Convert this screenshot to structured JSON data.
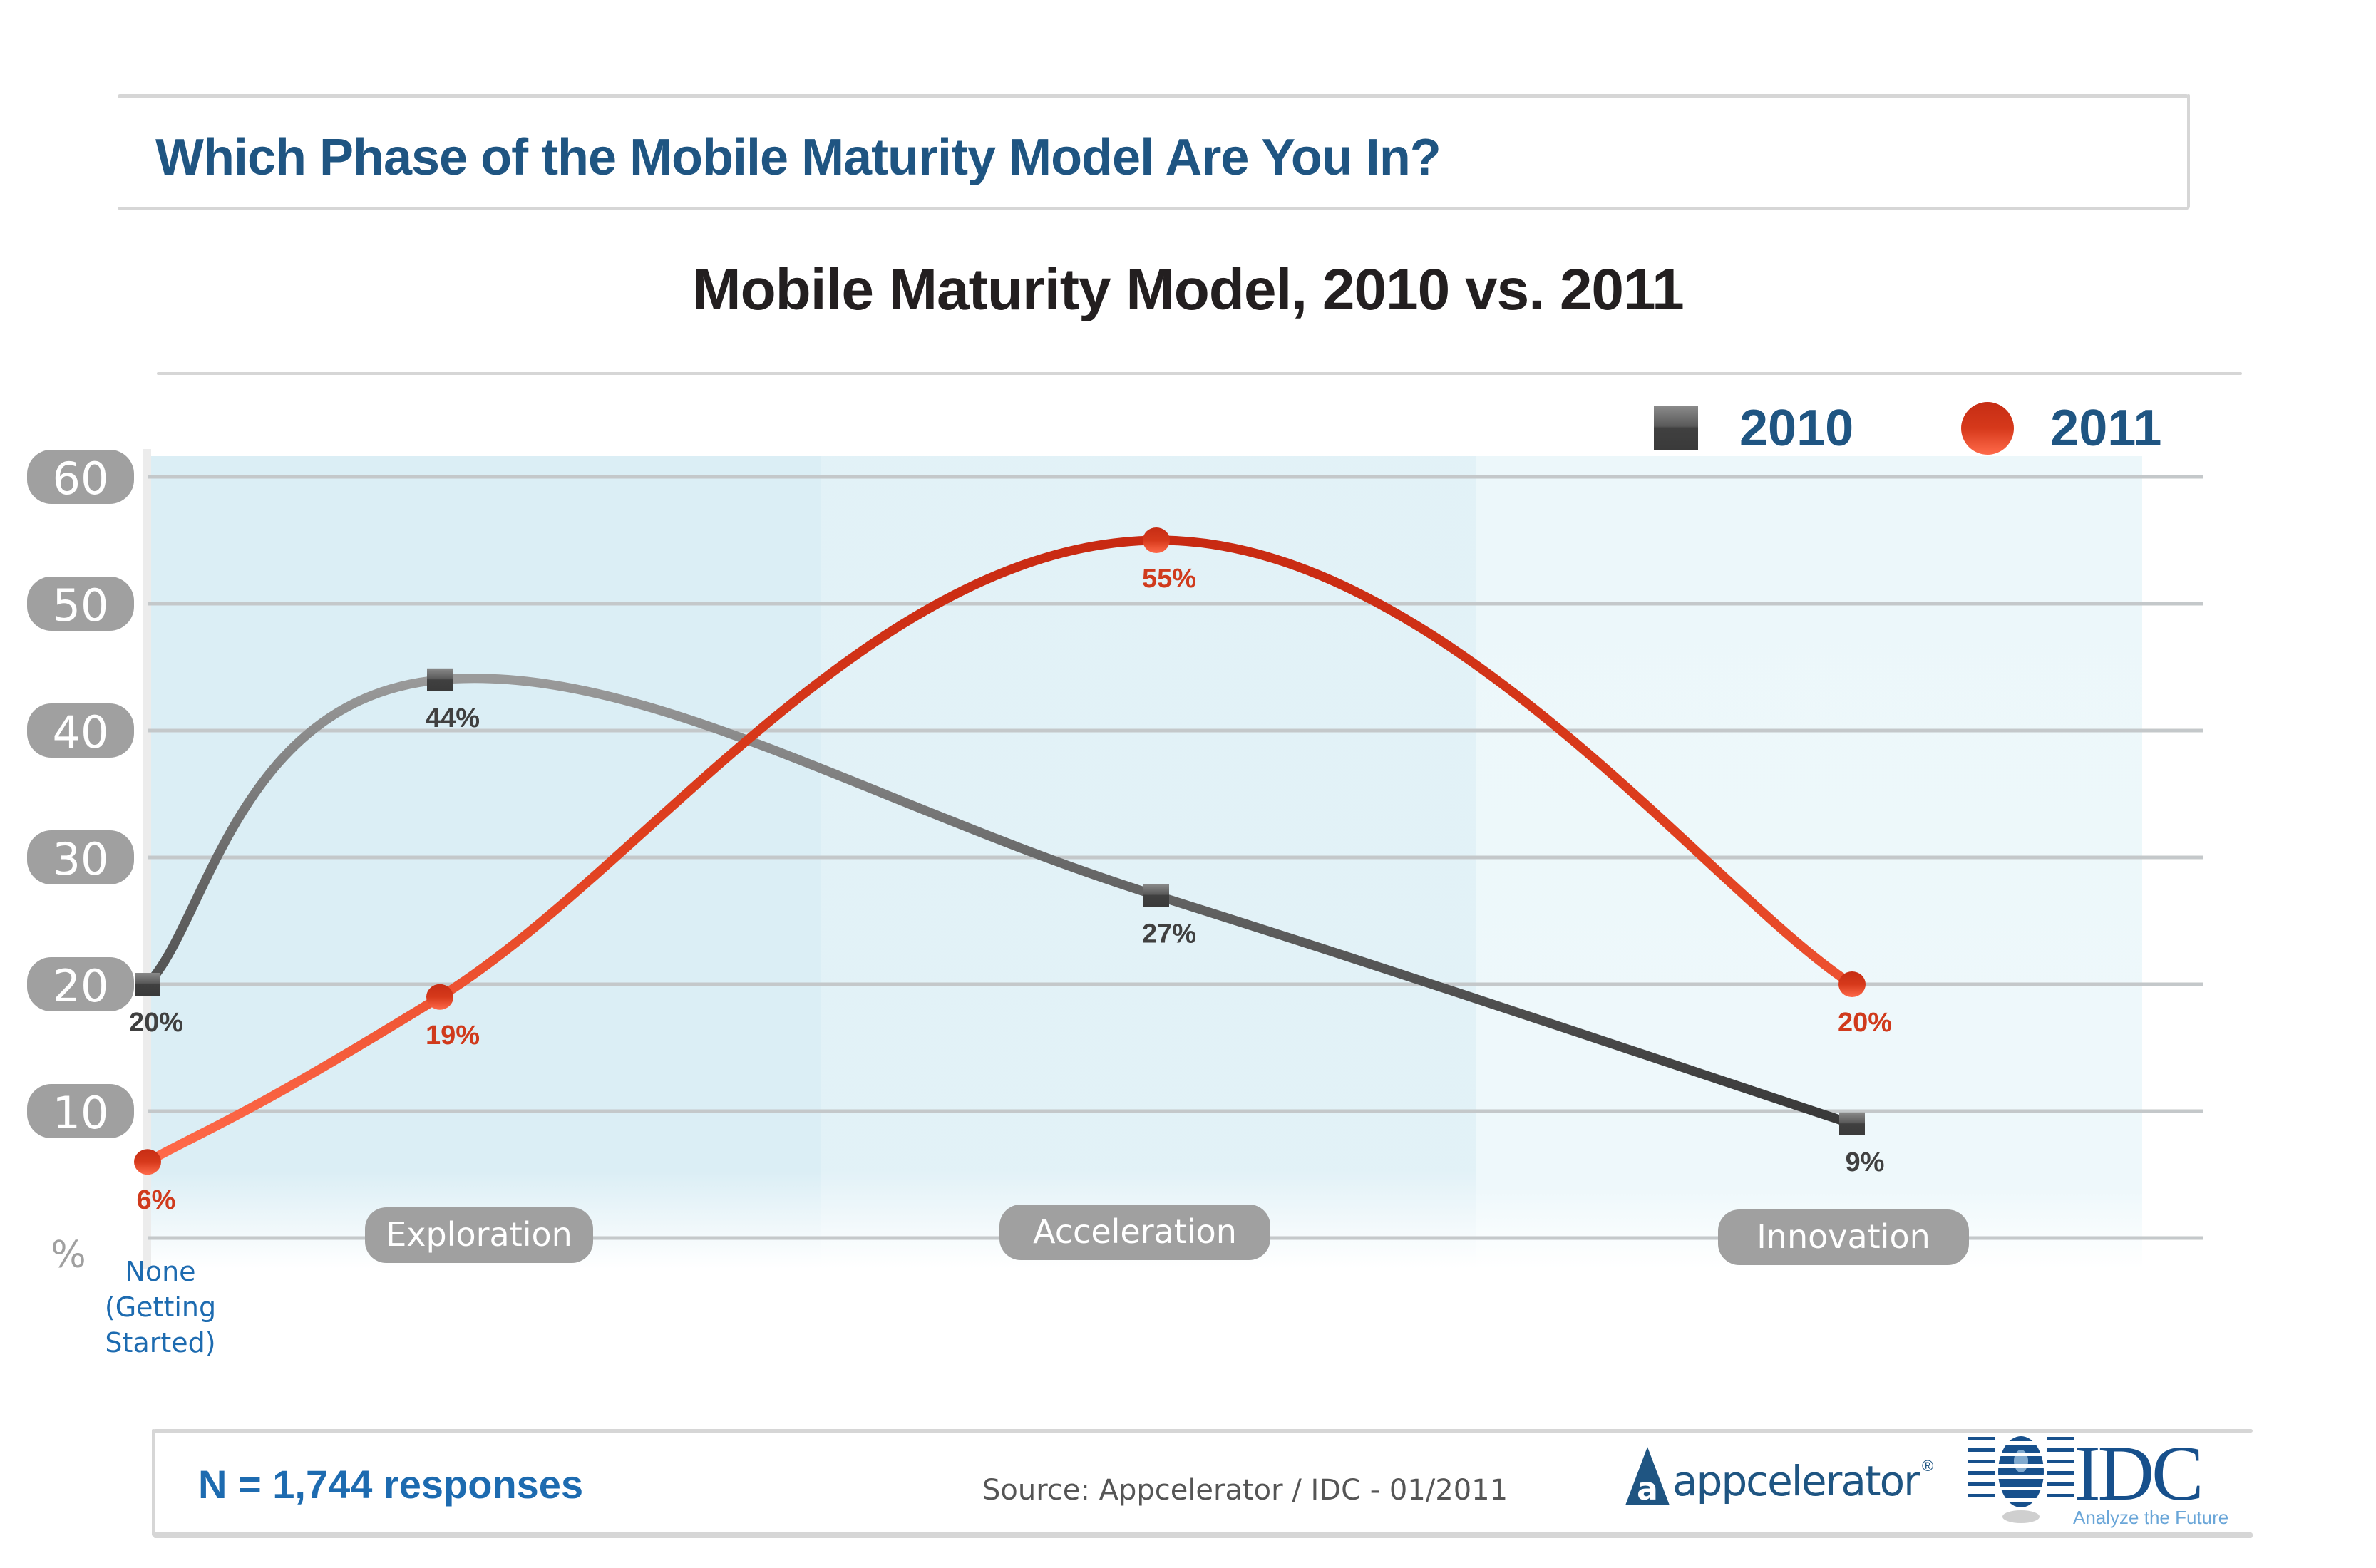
{
  "header": {
    "title": "Which Phase of the Mobile Maturity Model Are You In?"
  },
  "footer": {
    "sample_size": "N = 1,744 responses",
    "source": "Source: Appcelerator / IDC - 01/2011",
    "logos": {
      "appcelerator": "appcelerator",
      "appcelerator_mark": "a",
      "registered": "®",
      "idc": "IDC",
      "idc_tagline": "Analyze the Future"
    }
  },
  "colors": {
    "header_blue": "#1f5582",
    "series_2010": "#404040",
    "series_2011": "#d03a1c",
    "pill_gray": "#a0a0a0",
    "plot_bg": "#dbeef5",
    "category_blue": "#1d6bb0"
  },
  "chart_data": {
    "type": "line",
    "title": "Mobile Maturity Model, 2010 vs. 2011",
    "xlabel": "",
    "ylabel": "%",
    "ylim": [
      0,
      60
    ],
    "yticks": [
      "10",
      "20",
      "30",
      "40",
      "50",
      "60"
    ],
    "ytick_values": [
      10,
      20,
      30,
      40,
      50,
      60
    ],
    "grid": true,
    "smooth": true,
    "legend": "top-right",
    "categories": [
      "None (Getting Started)",
      "Exploration",
      "Acceleration",
      "Innovation"
    ],
    "category_lines": [
      "None",
      "(Getting",
      "Started)"
    ],
    "series": [
      {
        "name": "2010",
        "marker": "square",
        "values": [
          20,
          44,
          27,
          9
        ],
        "labels": [
          "20%",
          "44%",
          "27%",
          "9%"
        ]
      },
      {
        "name": "2011",
        "marker": "circle",
        "values": [
          6,
          19,
          55,
          20
        ],
        "labels": [
          "6%",
          "19%",
          "55%",
          "20%"
        ]
      }
    ]
  }
}
